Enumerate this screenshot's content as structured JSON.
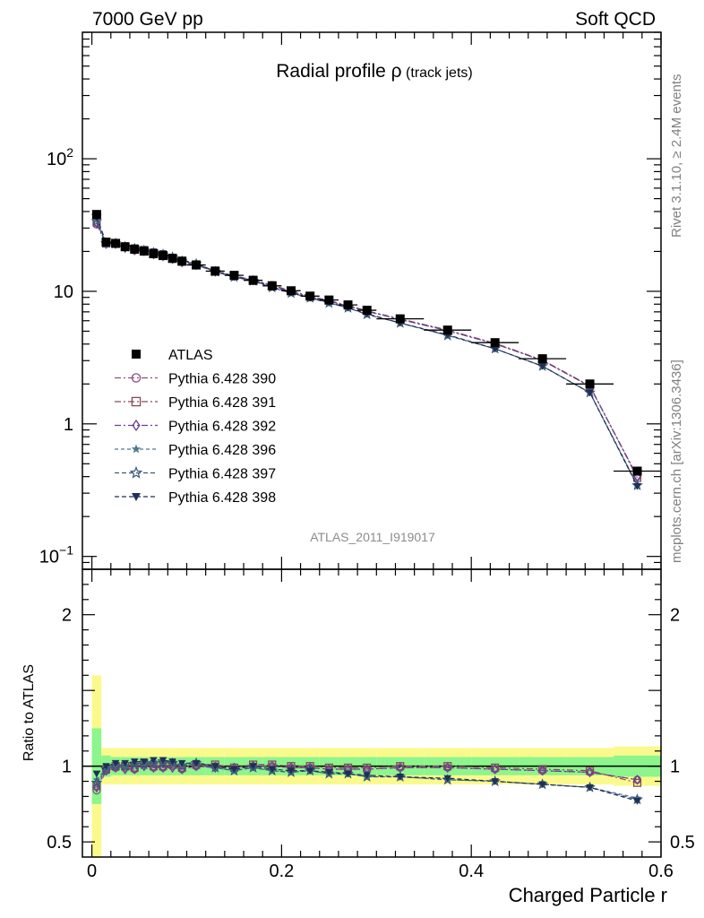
{
  "header": {
    "left": "7000 GeV pp",
    "right": "Soft QCD"
  },
  "title": {
    "main": "Radial profile ",
    "symbol": "ρ",
    "sub": " (track jets)"
  },
  "side_texts": {
    "rivet": "Rivet 3.1.10, ≥ 2.4M events",
    "mcplots": "mcplots.cern.ch [arXiv:1306.3436]"
  },
  "analysis_label": "ATLAS_2011_I919017",
  "ratio_ylabel": "Ratio to ATLAS",
  "xlabel": "Charged Particle r",
  "legend": [
    {
      "label": "ATLAS",
      "marker": "filled-square",
      "color": "#000000"
    },
    {
      "label": "Pythia 6.428 390",
      "marker": "open-circle",
      "color": "#8c4f86"
    },
    {
      "label": "Pythia 6.428 391",
      "marker": "open-square",
      "color": "#874a56"
    },
    {
      "label": "Pythia 6.428 392",
      "marker": "open-diamond",
      "color": "#6b3f96"
    },
    {
      "label": "Pythia 6.428 396",
      "marker": "filled-star",
      "color": "#4f7a8a"
    },
    {
      "label": "Pythia 6.428 397",
      "marker": "open-star",
      "color": "#3a5a7a"
    },
    {
      "label": "Pythia 6.428 398",
      "marker": "filled-triangle-down",
      "color": "#1f2f55"
    }
  ],
  "colors": {
    "band_inner": "#8cf58c",
    "band_outer": "#fafa8c",
    "data": "#000000"
  },
  "chart_data": {
    "type": "line",
    "xlim": [
      -0.01,
      0.6
    ],
    "main_ylim": [
      0.08,
      900
    ],
    "main_yscale": "log",
    "ratio_ylim": [
      0.4,
      2.3
    ],
    "x_ticks": [
      "0",
      "0.2",
      "0.4",
      "0.6"
    ],
    "main_y_ticks": [
      {
        "value": 0.1,
        "base": "10",
        "exp": "−1"
      },
      {
        "value": 1,
        "base": "1",
        "exp": ""
      },
      {
        "value": 10,
        "base": "10",
        "exp": ""
      },
      {
        "value": 100,
        "base": "10",
        "exp": "2"
      }
    ],
    "ratio_y_ticks": [
      {
        "value": 0.5,
        "label": "0.5"
      },
      {
        "value": 1,
        "label": "1"
      },
      {
        "value": 2,
        "label": "2"
      }
    ],
    "x": [
      0.005,
      0.015,
      0.025,
      0.035,
      0.045,
      0.055,
      0.065,
      0.075,
      0.085,
      0.095,
      0.11,
      0.13,
      0.15,
      0.17,
      0.19,
      0.21,
      0.23,
      0.25,
      0.27,
      0.29,
      0.325,
      0.375,
      0.425,
      0.475,
      0.525,
      0.575
    ],
    "x_half_widths": [
      0.005,
      0.005,
      0.005,
      0.005,
      0.005,
      0.005,
      0.005,
      0.005,
      0.005,
      0.005,
      0.01,
      0.01,
      0.01,
      0.01,
      0.01,
      0.01,
      0.01,
      0.01,
      0.01,
      0.01,
      0.025,
      0.025,
      0.025,
      0.025,
      0.025,
      0.025
    ],
    "data": [
      38,
      23.5,
      23,
      21.7,
      20.8,
      20.1,
      19.2,
      18.6,
      17.7,
      16.9,
      15.8,
      14.2,
      13.2,
      12.1,
      11.0,
      10.1,
      9.2,
      8.6,
      7.9,
      7.2,
      6.2,
      5.1,
      4.1,
      3.1,
      2.0,
      0.44
    ],
    "band_inner": [
      0.25,
      0.07,
      0.06,
      0.06,
      0.06,
      0.06,
      0.06,
      0.06,
      0.06,
      0.06,
      0.06,
      0.06,
      0.06,
      0.06,
      0.06,
      0.06,
      0.06,
      0.06,
      0.06,
      0.06,
      0.06,
      0.06,
      0.06,
      0.06,
      0.06,
      0.07
    ],
    "band_outer": [
      0.6,
      0.12,
      0.12,
      0.12,
      0.12,
      0.12,
      0.12,
      0.12,
      0.12,
      0.12,
      0.12,
      0.12,
      0.12,
      0.12,
      0.12,
      0.12,
      0.12,
      0.12,
      0.12,
      0.12,
      0.12,
      0.12,
      0.12,
      0.12,
      0.12,
      0.13
    ],
    "series": [
      {
        "name": "Pythia 6.428 390",
        "ratio": [
          0.84,
          0.97,
          0.99,
          0.99,
          0.98,
          1.01,
          0.99,
          0.99,
          1.0,
          0.98,
          1.0,
          1.0,
          0.98,
          1.0,
          1.0,
          0.99,
          0.99,
          0.98,
          0.98,
          0.98,
          0.99,
          0.99,
          0.98,
          0.97,
          0.96,
          0.91
        ]
      },
      {
        "name": "Pythia 6.428 391",
        "ratio": [
          0.87,
          0.98,
          1.0,
          1.0,
          0.99,
          1.02,
          1.0,
          1.0,
          1.01,
          0.99,
          1.01,
          1.01,
          0.99,
          1.01,
          1.01,
          1.0,
          1.0,
          0.99,
          0.99,
          0.99,
          1.0,
          1.0,
          0.99,
          0.98,
          0.97,
          0.89
        ]
      },
      {
        "name": "Pythia 6.428 392",
        "ratio": [
          0.86,
          0.97,
          0.99,
          0.98,
          0.98,
          1.0,
          0.99,
          0.99,
          0.99,
          0.98,
          1.0,
          0.99,
          0.99,
          1.0,
          1.0,
          0.99,
          0.99,
          0.98,
          0.98,
          0.98,
          0.99,
          0.99,
          0.98,
          0.97,
          0.96,
          0.91
        ]
      },
      {
        "name": "Pythia 6.428 396",
        "ratio": [
          0.91,
          0.99,
          1.01,
          1.0,
          1.02,
          1.02,
          1.03,
          1.03,
          1.02,
          1.01,
          1.03,
          0.99,
          0.97,
          0.99,
          0.97,
          0.96,
          0.97,
          0.95,
          0.95,
          0.93,
          0.93,
          0.91,
          0.9,
          0.88,
          0.86,
          0.79
        ]
      },
      {
        "name": "Pythia 6.428 397",
        "ratio": [
          0.89,
          0.98,
          1.0,
          1.0,
          1.01,
          1.01,
          1.02,
          1.02,
          1.02,
          1.0,
          1.02,
          0.99,
          0.97,
          0.99,
          0.97,
          0.96,
          0.97,
          0.95,
          0.95,
          0.93,
          0.93,
          0.91,
          0.9,
          0.88,
          0.86,
          0.78
        ]
      },
      {
        "name": "Pythia 6.428 398",
        "ratio": [
          0.95,
          1.0,
          1.02,
          1.02,
          1.03,
          1.03,
          1.04,
          1.04,
          1.03,
          1.02,
          1.02,
          1.0,
          0.98,
          1.0,
          0.98,
          0.97,
          0.97,
          0.96,
          0.95,
          0.94,
          0.93,
          0.92,
          0.9,
          0.88,
          0.86,
          0.77
        ]
      }
    ]
  }
}
